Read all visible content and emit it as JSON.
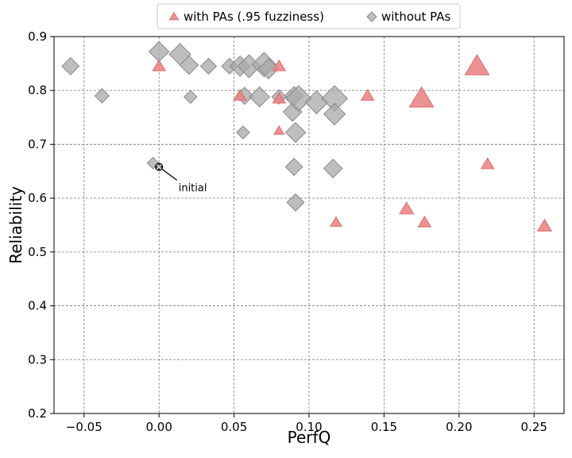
{
  "chart_data": {
    "type": "scatter",
    "title": "",
    "xlabel": "PerfQ",
    "ylabel": "Reliability",
    "xlim": [
      -0.07,
      0.27
    ],
    "ylim": [
      0.2,
      0.9
    ],
    "xticks": [
      -0.05,
      0.0,
      0.05,
      0.1,
      0.15,
      0.2,
      0.25
    ],
    "xtick_labels": [
      "−0.05",
      "0.00",
      "0.05",
      "0.10",
      "0.15",
      "0.20",
      "0.25"
    ],
    "yticks": [
      0.2,
      0.3,
      0.4,
      0.5,
      0.6,
      0.7,
      0.8,
      0.9
    ],
    "ytick_labels": [
      "0.2",
      "0.3",
      "0.4",
      "0.5",
      "0.6",
      "0.7",
      "0.8",
      "0.9"
    ],
    "grid": true,
    "legend_position": "top-center",
    "colors": {
      "with": "#e88080",
      "without": "#a8a8a8",
      "grid": "#7a7a7a"
    },
    "series": [
      {
        "name": "with PAs (.95 fuzziness)",
        "marker": "triangle",
        "points": [
          {
            "x": 0.0,
            "y": 0.845,
            "size": 1.0
          },
          {
            "x": 0.054,
            "y": 0.79,
            "size": 1.0
          },
          {
            "x": 0.08,
            "y": 0.845,
            "size": 1.0
          },
          {
            "x": 0.08,
            "y": 0.725,
            "size": 0.8
          },
          {
            "x": 0.08,
            "y": 0.785,
            "size": 1.0
          },
          {
            "x": 0.118,
            "y": 0.555,
            "size": 0.9
          },
          {
            "x": 0.139,
            "y": 0.79,
            "size": 1.0
          },
          {
            "x": 0.165,
            "y": 0.58,
            "size": 1.1
          },
          {
            "x": 0.175,
            "y": 0.785,
            "size": 1.9
          },
          {
            "x": 0.177,
            "y": 0.555,
            "size": 1.0
          },
          {
            "x": 0.212,
            "y": 0.845,
            "size": 1.9
          },
          {
            "x": 0.219,
            "y": 0.663,
            "size": 1.0
          },
          {
            "x": 0.257,
            "y": 0.548,
            "size": 1.1
          }
        ]
      },
      {
        "name": "without PAs",
        "marker": "diamond",
        "points": [
          {
            "x": -0.059,
            "y": 0.845,
            "size": 1.2
          },
          {
            "x": -0.038,
            "y": 0.79,
            "size": 1.0
          },
          {
            "x": -0.004,
            "y": 0.665,
            "size": 0.8
          },
          {
            "x": 0.0,
            "y": 0.872,
            "size": 1.4
          },
          {
            "x": 0.014,
            "y": 0.867,
            "size": 1.5
          },
          {
            "x": 0.02,
            "y": 0.847,
            "size": 1.3
          },
          {
            "x": 0.021,
            "y": 0.788,
            "size": 0.9
          },
          {
            "x": 0.033,
            "y": 0.845,
            "size": 1.1
          },
          {
            "x": 0.047,
            "y": 0.845,
            "size": 1.1
          },
          {
            "x": 0.054,
            "y": 0.845,
            "size": 1.4
          },
          {
            "x": 0.056,
            "y": 0.722,
            "size": 0.9
          },
          {
            "x": 0.057,
            "y": 0.79,
            "size": 1.2
          },
          {
            "x": 0.06,
            "y": 0.845,
            "size": 1.6
          },
          {
            "x": 0.067,
            "y": 0.788,
            "size": 1.4
          },
          {
            "x": 0.07,
            "y": 0.848,
            "size": 1.7
          },
          {
            "x": 0.073,
            "y": 0.84,
            "size": 1.4
          },
          {
            "x": 0.08,
            "y": 0.788,
            "size": 1.0
          },
          {
            "x": 0.089,
            "y": 0.76,
            "size": 1.3
          },
          {
            "x": 0.09,
            "y": 0.658,
            "size": 1.2
          },
          {
            "x": 0.09,
            "y": 0.79,
            "size": 1.3
          },
          {
            "x": 0.091,
            "y": 0.722,
            "size": 1.4
          },
          {
            "x": 0.091,
            "y": 0.592,
            "size": 1.2
          },
          {
            "x": 0.093,
            "y": 0.785,
            "size": 1.8
          },
          {
            "x": 0.105,
            "y": 0.778,
            "size": 1.6
          },
          {
            "x": 0.116,
            "y": 0.655,
            "size": 1.3
          },
          {
            "x": 0.117,
            "y": 0.785,
            "size": 1.8
          },
          {
            "x": 0.117,
            "y": 0.756,
            "size": 1.5
          }
        ]
      }
    ],
    "special_point": {
      "x": 0.0,
      "y": 0.658
    },
    "annotation": {
      "text": "initial",
      "x": 0.0,
      "y": 0.658,
      "text_x": 0.013,
      "text_y": 0.62
    }
  }
}
